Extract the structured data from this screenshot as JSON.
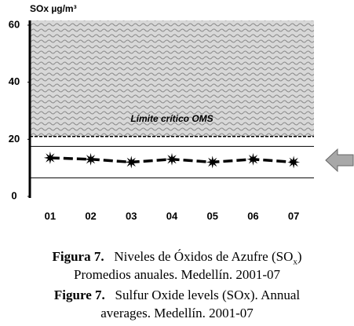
{
  "chart_data": {
    "type": "line",
    "y_label": "SOx µg/m³",
    "categories": [
      "01",
      "02",
      "03",
      "04",
      "05",
      "06",
      "07"
    ],
    "values": [
      13.5,
      13,
      12,
      13,
      12,
      13,
      12
    ],
    "color": "#000000",
    "ylim": [
      0,
      60
    ],
    "yticks": [
      0,
      20,
      40,
      60
    ],
    "limit": 21,
    "limit_label": "Límite crítico OMS",
    "range_lines": [
      6.5,
      17.5
    ]
  },
  "caption": {
    "es_label": "Figura 7.",
    "es_text": "Niveles de Óxidos de Azufre (SO",
    "es_sub": "x",
    "es_close": ")",
    "es_line2": "Promedios anuales. Medellín. 2001-07",
    "en_label": "Figure 7.",
    "en_text": "Sulfur Oxide levels (SOx). Annual",
    "en_line2": "averages. Medellín. 2001-07"
  }
}
